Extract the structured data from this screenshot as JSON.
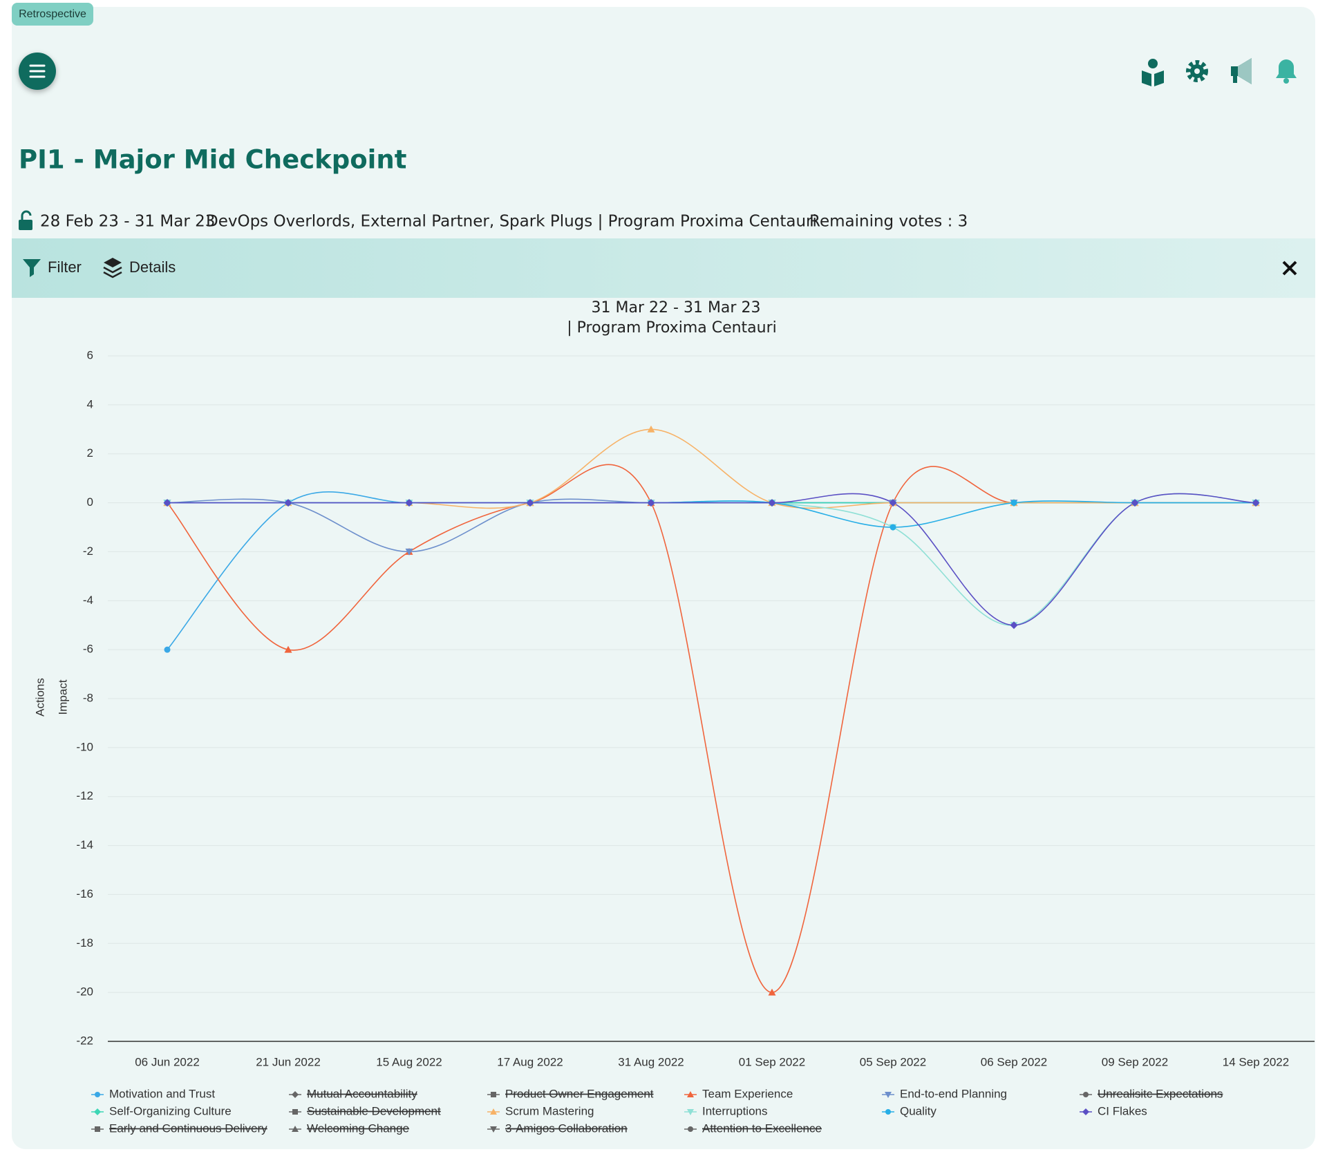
{
  "badge": "Retrospective",
  "title": "PI1 - Major Mid Checkpoint",
  "date_range": "28 Feb 23 - 31 Mar 23",
  "teams": "DevOps Overlords, External Partner, Spark Plugs | Program Proxima Centauri",
  "remaining_votes": "Remaining votes : 3",
  "toolbar": {
    "filter": "Filter",
    "details": "Details"
  },
  "chart_data": {
    "type": "line",
    "title": "31 Mar 22 - 31 Mar 23",
    "subtitle": "| Program Proxima Centauri",
    "y_labels": [
      "Actions",
      "Impact"
    ],
    "categories": [
      "06 Jun 2022",
      "21 Jun 2022",
      "15 Aug 2022",
      "17 Aug 2022",
      "31 Aug 2022",
      "01 Sep 2022",
      "05 Sep 2022",
      "06 Sep 2022",
      "09 Sep 2022",
      "14 Sep 2022"
    ],
    "ylim": [
      -22,
      6
    ],
    "yticks": [
      -22,
      -20,
      -18,
      -16,
      -14,
      -12,
      -10,
      -8,
      -6,
      -4,
      -2,
      0,
      2,
      4,
      6
    ],
    "grid": true,
    "series": [
      {
        "name": "Motivation and Trust",
        "color": "#3aa8e6",
        "marker": "circle",
        "values": [
          -6,
          0,
          0,
          0,
          0,
          0,
          0,
          0,
          0,
          0
        ]
      },
      {
        "name": "Mutual Accountability",
        "color": "#666666",
        "marker": "diamond",
        "hidden": true,
        "values": [
          null,
          null,
          null,
          null,
          null,
          null,
          null,
          null,
          null,
          null
        ]
      },
      {
        "name": "Product Owner Engagement",
        "color": "#666666",
        "marker": "square",
        "hidden": true,
        "values": [
          null,
          null,
          null,
          null,
          null,
          null,
          null,
          null,
          null,
          null
        ]
      },
      {
        "name": "Team Experience",
        "color": "#f0643c",
        "marker": "triangle",
        "values": [
          0,
          -6,
          -2,
          0,
          0,
          -20,
          0,
          0,
          0,
          0
        ]
      },
      {
        "name": "End-to-end Planning",
        "color": "#6d8fcc",
        "marker": "triangle-down",
        "values": [
          0,
          0,
          -2,
          0,
          0,
          0,
          0,
          0,
          0,
          0
        ]
      },
      {
        "name": "Unrealisitc Expectations",
        "color": "#666666",
        "marker": "circle",
        "hidden": true,
        "values": [
          null,
          null,
          null,
          null,
          null,
          null,
          null,
          null,
          null,
          null
        ]
      },
      {
        "name": "Self-Organizing Culture",
        "color": "#3dd6b5",
        "marker": "diamond",
        "values": [
          0,
          0,
          0,
          0,
          0,
          0,
          0,
          0,
          0,
          0
        ]
      },
      {
        "name": "Sustainable Development",
        "color": "#666666",
        "marker": "square",
        "hidden": true,
        "values": [
          null,
          null,
          null,
          null,
          null,
          null,
          null,
          null,
          null,
          null
        ]
      },
      {
        "name": "Scrum Mastering",
        "color": "#f7b267",
        "marker": "triangle",
        "values": [
          0,
          0,
          0,
          0,
          3,
          0,
          0,
          0,
          0,
          0
        ]
      },
      {
        "name": "Interruptions",
        "color": "#8fe0d6",
        "marker": "triangle-down",
        "values": [
          0,
          0,
          0,
          0,
          0,
          0,
          -1,
          -5,
          0,
          0
        ]
      },
      {
        "name": "Quality",
        "color": "#27aee6",
        "marker": "circle",
        "values": [
          0,
          0,
          0,
          0,
          0,
          0,
          -1,
          0,
          0,
          0
        ]
      },
      {
        "name": "CI Flakes",
        "color": "#5a4fc4",
        "marker": "diamond",
        "values": [
          0,
          0,
          0,
          0,
          0,
          0,
          0,
          -5,
          0,
          0
        ]
      },
      {
        "name": "Early and Continuous Delivery",
        "color": "#666666",
        "marker": "square",
        "hidden": true,
        "values": [
          null,
          null,
          null,
          null,
          null,
          null,
          null,
          null,
          null,
          null
        ]
      },
      {
        "name": "Welcoming Change",
        "color": "#666666",
        "marker": "triangle",
        "hidden": true,
        "values": [
          null,
          null,
          null,
          null,
          null,
          null,
          null,
          null,
          null,
          null
        ]
      },
      {
        "name": "3-Amigos Collaboration",
        "color": "#666666",
        "marker": "triangle-down",
        "hidden": true,
        "values": [
          null,
          null,
          null,
          null,
          null,
          null,
          null,
          null,
          null,
          null
        ]
      },
      {
        "name": "Attention to Excellence",
        "color": "#666666",
        "marker": "circle",
        "hidden": true,
        "values": [
          null,
          null,
          null,
          null,
          null,
          null,
          null,
          null,
          null,
          null
        ]
      }
    ]
  }
}
